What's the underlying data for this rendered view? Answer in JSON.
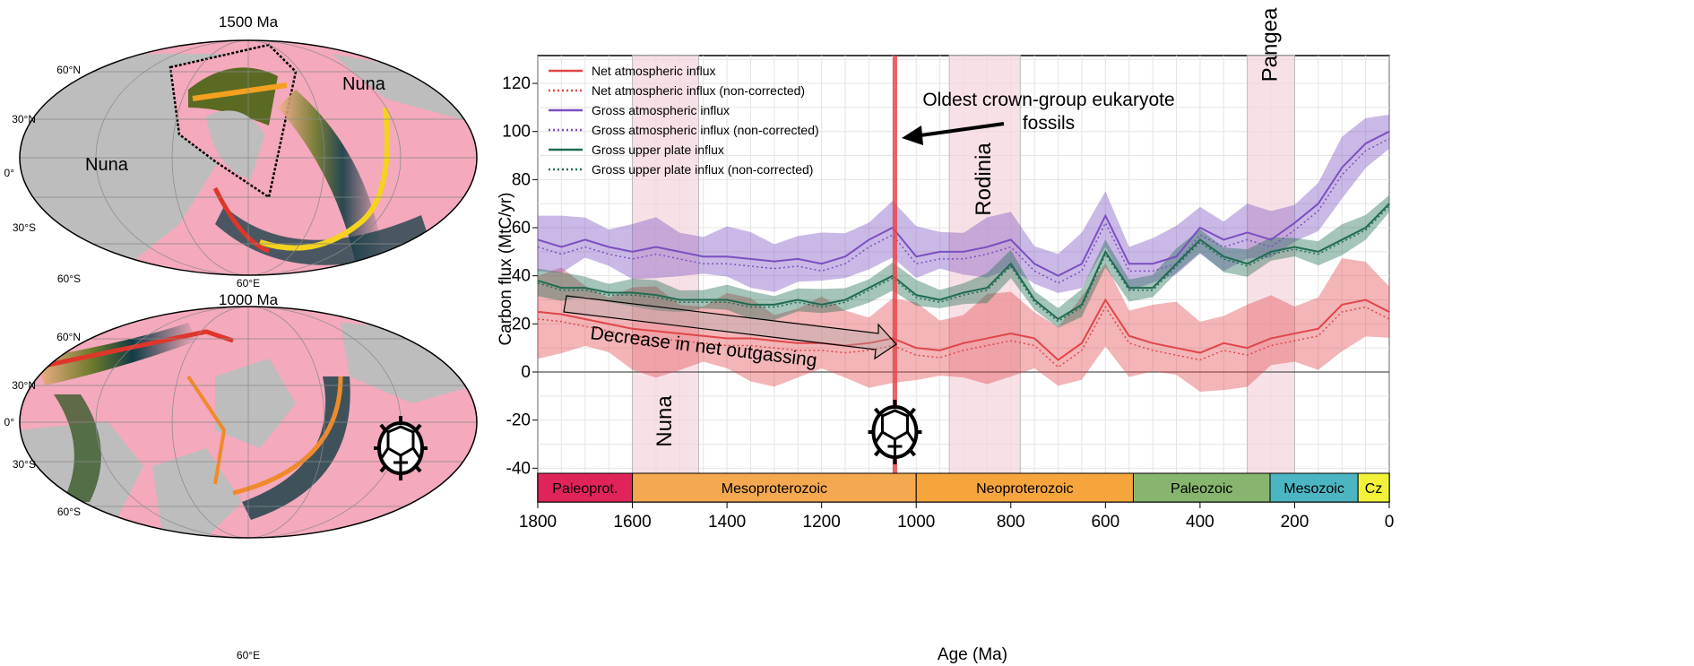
{
  "maps": [
    {
      "title": "1500 Ma",
      "lat_labels": [
        "60°N",
        "30°N",
        "0°",
        "30°S",
        "60°S"
      ],
      "lon_label": "60°E",
      "continent_labels": [
        "Nuna",
        "Nuna"
      ]
    },
    {
      "title": "1000 Ma",
      "lat_labels": [
        "60°N",
        "30°N",
        "0°",
        "30°S",
        "60°S"
      ],
      "lon_label": "60°E",
      "continent_labels": []
    }
  ],
  "colors": {
    "net": "#e0454a",
    "gross_atm": "#7b4fc0",
    "upper_plate": "#1f6b52",
    "ocean": "#f4a9bc",
    "continent": "#b9b9b9",
    "supercontinent_band": "#f5d4dc",
    "event_line": "#e8464e"
  },
  "chart_data": {
    "type": "line",
    "xlabel": "Age (Ma)",
    "ylabel": "Carbon flux (MtC/yr)",
    "xlim": [
      1800,
      0
    ],
    "ylim": [
      -40,
      130
    ],
    "x_reversed": true,
    "grid": true,
    "legend_position": "top-left",
    "xticks": [
      1800,
      1600,
      1400,
      1200,
      1000,
      800,
      600,
      400,
      200,
      0
    ],
    "yticks": [
      -40,
      -20,
      0,
      20,
      40,
      60,
      80,
      100,
      120
    ],
    "x": [
      1800,
      1750,
      1700,
      1650,
      1600,
      1550,
      1500,
      1450,
      1400,
      1350,
      1300,
      1250,
      1200,
      1150,
      1100,
      1050,
      1000,
      950,
      900,
      850,
      800,
      750,
      700,
      650,
      600,
      550,
      500,
      450,
      400,
      350,
      300,
      250,
      200,
      150,
      100,
      50,
      0
    ],
    "series": [
      {
        "name": "Net atmospheric influx",
        "style": "solid",
        "color": "#e0454a",
        "band_halfwidth": 15,
        "values": [
          25,
          24,
          22,
          20,
          18,
          17,
          16,
          15,
          14,
          14,
          13,
          12,
          12,
          11,
          12,
          14,
          10,
          9,
          12,
          14,
          16,
          14,
          5,
          12,
          30,
          15,
          12,
          10,
          8,
          12,
          10,
          14,
          16,
          18,
          28,
          30,
          25
        ]
      },
      {
        "name": "Net atmospheric influx (non-corrected)",
        "style": "dotted",
        "color": "#e0454a",
        "values": [
          22,
          21,
          19,
          17,
          15,
          14,
          13,
          12,
          11,
          11,
          10,
          9,
          9,
          8,
          9,
          11,
          7,
          6,
          9,
          11,
          13,
          11,
          2,
          9,
          27,
          12,
          9,
          7,
          5,
          9,
          7,
          11,
          13,
          15,
          25,
          27,
          22
        ]
      },
      {
        "name": "Gross atmospheric influx",
        "style": "solid",
        "color": "#7b4fc0",
        "band_halfwidth": 10,
        "values": [
          55,
          52,
          55,
          52,
          50,
          52,
          50,
          48,
          48,
          47,
          46,
          47,
          45,
          48,
          55,
          60,
          48,
          50,
          50,
          52,
          55,
          45,
          40,
          45,
          65,
          45,
          45,
          48,
          60,
          55,
          58,
          55,
          62,
          70,
          85,
          95,
          100
        ]
      },
      {
        "name": "Gross atmospheric influx (non-corrected)",
        "style": "dotted",
        "color": "#7b4fc0",
        "values": [
          52,
          49,
          52,
          49,
          47,
          49,
          47,
          45,
          45,
          44,
          43,
          44,
          42,
          45,
          52,
          57,
          45,
          47,
          47,
          49,
          52,
          42,
          37,
          42,
          62,
          42,
          42,
          45,
          57,
          52,
          55,
          52,
          59,
          67,
          82,
          92,
          97
        ]
      },
      {
        "name": "Gross upper plate influx",
        "style": "solid",
        "color": "#1f6b52",
        "band_halfwidth": 5,
        "values": [
          38,
          35,
          35,
          33,
          33,
          32,
          30,
          30,
          30,
          28,
          28,
          30,
          28,
          30,
          35,
          40,
          32,
          30,
          33,
          35,
          45,
          30,
          22,
          28,
          50,
          35,
          35,
          45,
          55,
          48,
          45,
          50,
          52,
          50,
          55,
          60,
          70
        ]
      },
      {
        "name": "Gross upper plate influx (non-corrected)",
        "style": "dotted",
        "color": "#1f6b52",
        "values": [
          37,
          34,
          34,
          32,
          32,
          31,
          29,
          29,
          29,
          27,
          27,
          29,
          27,
          29,
          34,
          39,
          31,
          29,
          32,
          34,
          44,
          29,
          21,
          27,
          49,
          34,
          34,
          44,
          54,
          47,
          44,
          49,
          51,
          49,
          54,
          59,
          69
        ]
      }
    ],
    "shaded_periods": [
      {
        "label": "Nuna",
        "from": 1600,
        "to": 1460
      },
      {
        "label": "Rodinia",
        "from": 930,
        "to": 780
      },
      {
        "label": "Pangea",
        "from": 300,
        "to": 200
      }
    ],
    "event_line": {
      "age": 1045
    },
    "annotations": {
      "eukaryote": [
        "Oldest crown-group eukaryote",
        "fossils"
      ],
      "trend": "Decrease in net outgassing"
    },
    "timescale": [
      {
        "label": "Paleoprot.",
        "from": 1800,
        "to": 1600,
        "color": "#e0245a"
      },
      {
        "label": "Mesoproterozoic",
        "from": 1600,
        "to": 1000,
        "color": "#f4a84f"
      },
      {
        "label": "Neoproterozoic",
        "from": 1000,
        "to": 541,
        "color": "#f6a53c"
      },
      {
        "label": "Paleozoic",
        "from": 541,
        "to": 252,
        "color": "#87b56e"
      },
      {
        "label": "Mesozoic",
        "from": 252,
        "to": 66,
        "color": "#4bb5c1"
      },
      {
        "label": "Cz",
        "from": 66,
        "to": 0,
        "color": "#f2f23a"
      }
    ]
  }
}
